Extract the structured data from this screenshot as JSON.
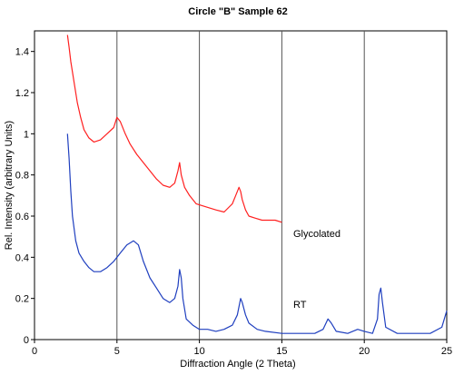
{
  "chart_data": {
    "type": "line",
    "title": "Circle \"B\" Sample  62",
    "xlabel": "Diffraction Angle (2 Theta)",
    "ylabel": "Rel. Intensity (arbitrary Units)",
    "xlim": [
      0,
      25
    ],
    "ylim": [
      0,
      1.5
    ],
    "x_ticks": [
      "0",
      "5",
      "10",
      "15",
      "20",
      "25"
    ],
    "y_ticks": [
      "0",
      "0.2",
      "0.4",
      "0.6",
      "0.8",
      "1",
      "1.2",
      "1.4"
    ],
    "vertical_gridlines": [
      5,
      10,
      15,
      20
    ],
    "series": [
      {
        "name": "Glycolated",
        "color": "#ff2020",
        "x": [
          2.0,
          2.1,
          2.2,
          2.4,
          2.6,
          2.8,
          3.0,
          3.3,
          3.6,
          4.0,
          4.4,
          4.8,
          5.0,
          5.2,
          5.5,
          5.8,
          6.2,
          6.6,
          7.0,
          7.4,
          7.8,
          8.2,
          8.5,
          8.7,
          8.8,
          8.9,
          9.1,
          9.4,
          9.8,
          10.2,
          10.6,
          11.0,
          11.5,
          12.0,
          12.2,
          12.4,
          12.5,
          12.6,
          12.8,
          13.0,
          13.4,
          13.8,
          14.2,
          14.6,
          15.0
        ],
        "y": [
          1.48,
          1.42,
          1.35,
          1.25,
          1.15,
          1.08,
          1.02,
          0.98,
          0.96,
          0.97,
          1.0,
          1.03,
          1.08,
          1.06,
          1.0,
          0.95,
          0.9,
          0.86,
          0.82,
          0.78,
          0.75,
          0.74,
          0.76,
          0.82,
          0.86,
          0.8,
          0.74,
          0.7,
          0.66,
          0.65,
          0.64,
          0.63,
          0.62,
          0.66,
          0.7,
          0.74,
          0.72,
          0.68,
          0.63,
          0.6,
          0.59,
          0.58,
          0.58,
          0.58,
          0.57
        ]
      },
      {
        "name": "RT",
        "color": "#1f3fbf",
        "x": [
          2.0,
          2.1,
          2.2,
          2.3,
          2.5,
          2.7,
          3.0,
          3.3,
          3.6,
          4.0,
          4.4,
          4.8,
          5.2,
          5.6,
          6.0,
          6.3,
          6.6,
          7.0,
          7.4,
          7.8,
          8.2,
          8.5,
          8.7,
          8.8,
          8.9,
          9.0,
          9.2,
          9.6,
          10.0,
          10.5,
          11.0,
          11.5,
          12.0,
          12.3,
          12.5,
          12.6,
          12.8,
          13.0,
          13.5,
          14.0,
          15.0,
          16.0,
          17.0,
          17.5,
          17.8,
          18.0,
          18.3,
          19.0,
          19.6,
          20.0,
          20.5,
          20.8,
          20.9,
          21.0,
          21.1,
          21.3,
          22.0,
          23.0,
          24.0,
          24.7,
          25.0
        ],
        "y": [
          1.0,
          0.88,
          0.72,
          0.6,
          0.48,
          0.42,
          0.38,
          0.35,
          0.33,
          0.33,
          0.35,
          0.38,
          0.42,
          0.46,
          0.48,
          0.46,
          0.38,
          0.3,
          0.25,
          0.2,
          0.18,
          0.2,
          0.26,
          0.34,
          0.3,
          0.2,
          0.1,
          0.07,
          0.05,
          0.05,
          0.04,
          0.05,
          0.07,
          0.12,
          0.2,
          0.18,
          0.12,
          0.08,
          0.05,
          0.04,
          0.03,
          0.03,
          0.03,
          0.05,
          0.1,
          0.08,
          0.04,
          0.03,
          0.05,
          0.04,
          0.03,
          0.1,
          0.22,
          0.25,
          0.18,
          0.06,
          0.03,
          0.03,
          0.03,
          0.06,
          0.14
        ]
      }
    ]
  }
}
